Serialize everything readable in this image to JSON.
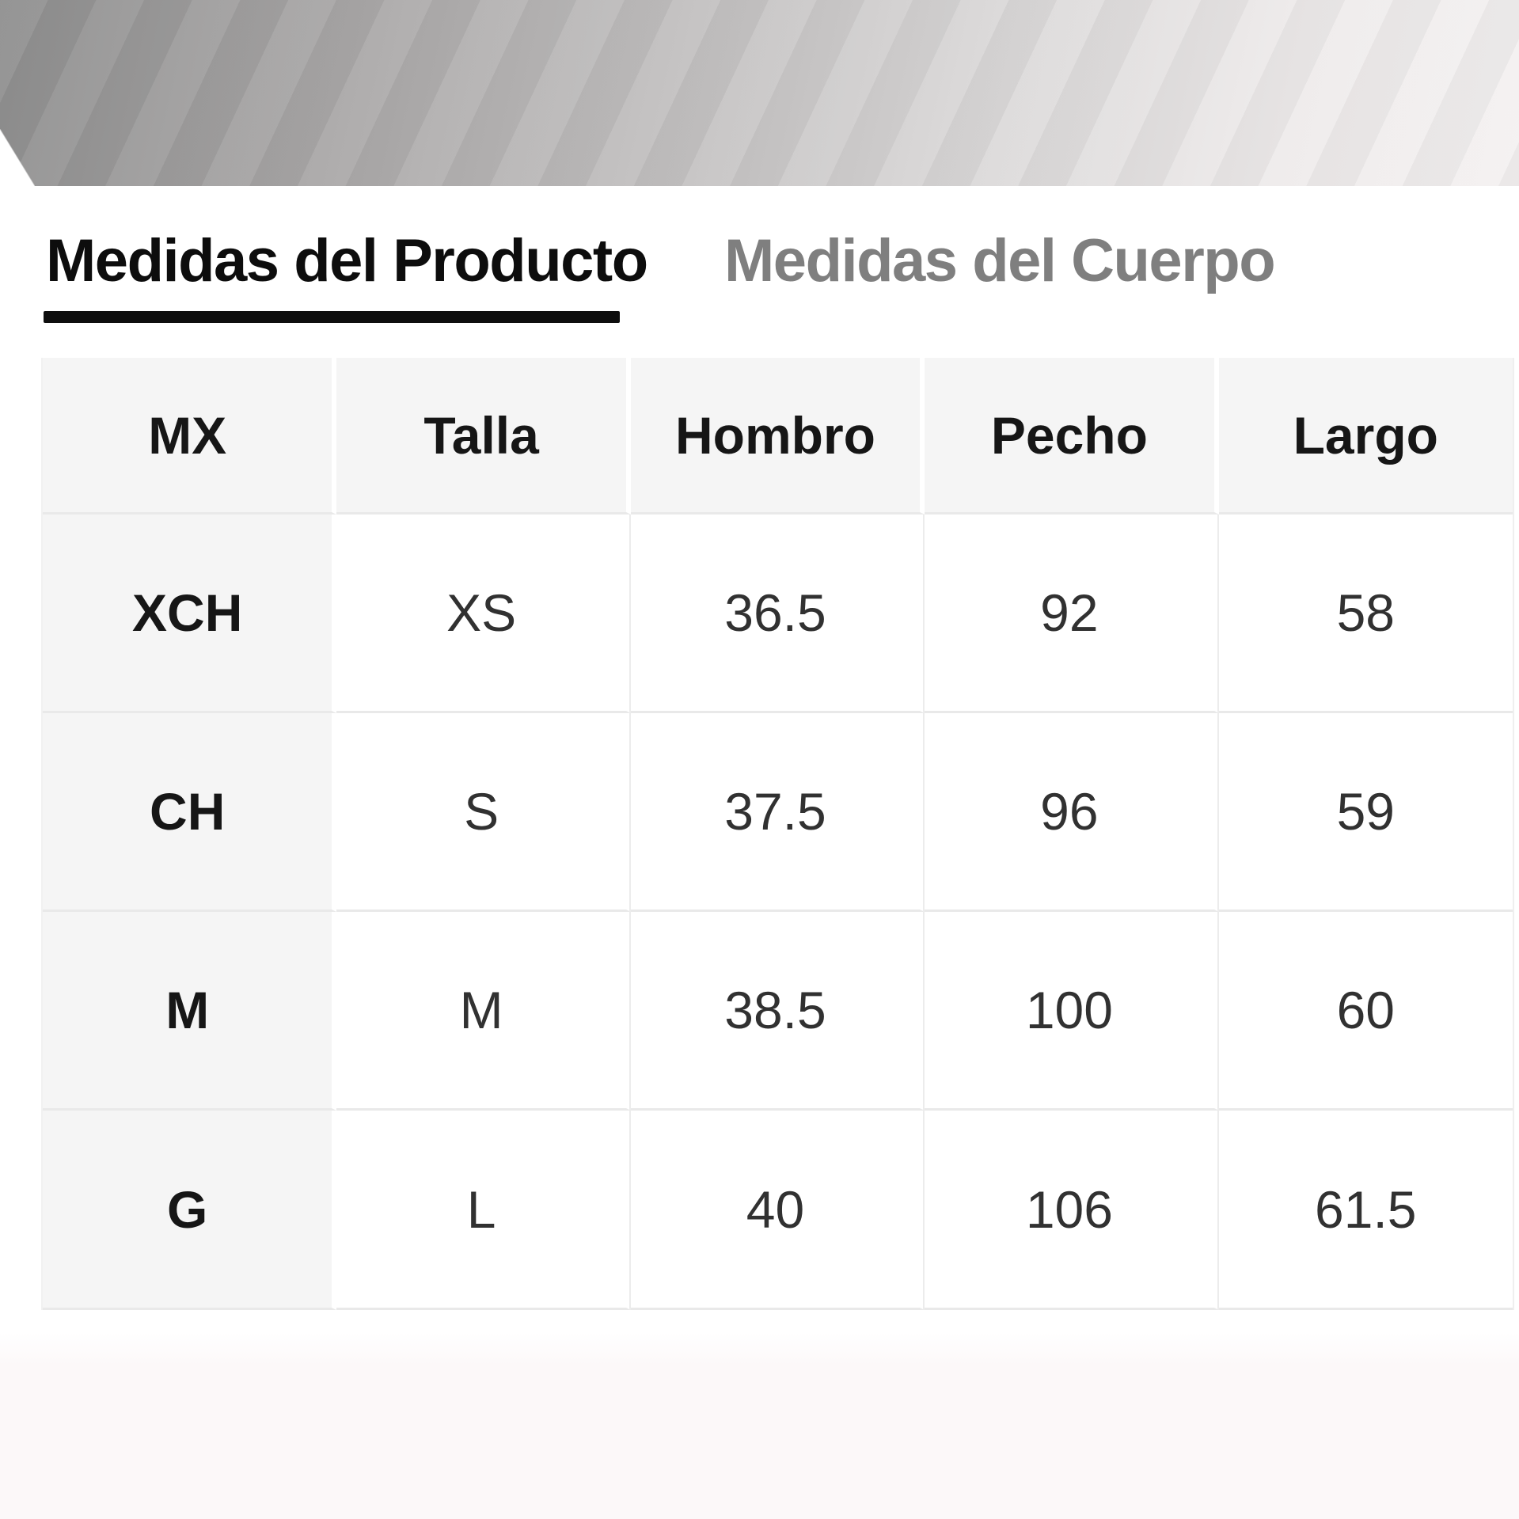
{
  "tabs": {
    "product_label": "Medidas del Producto",
    "body_label": "Medidas del Cuerpo"
  },
  "table": {
    "columns": [
      "MX",
      "Talla",
      "Hombro",
      "Pecho",
      "Largo"
    ],
    "rows": [
      [
        "XCH",
        "XS",
        "36.5",
        "92",
        "58"
      ],
      [
        "CH",
        "S",
        "37.5",
        "96",
        "59"
      ],
      [
        "M",
        "M",
        "38.5",
        "100",
        "60"
      ],
      [
        "G",
        "L",
        "40",
        "106",
        "61.5"
      ]
    ]
  },
  "colors": {
    "active_tab_text": "#0d0d0d",
    "inactive_tab_text": "#7f7f7f",
    "tab_underline": "#0e0e0e",
    "header_cell_bg": "#f5f5f5",
    "row_divider": "#e9e9e9",
    "data_text": "#313131"
  }
}
